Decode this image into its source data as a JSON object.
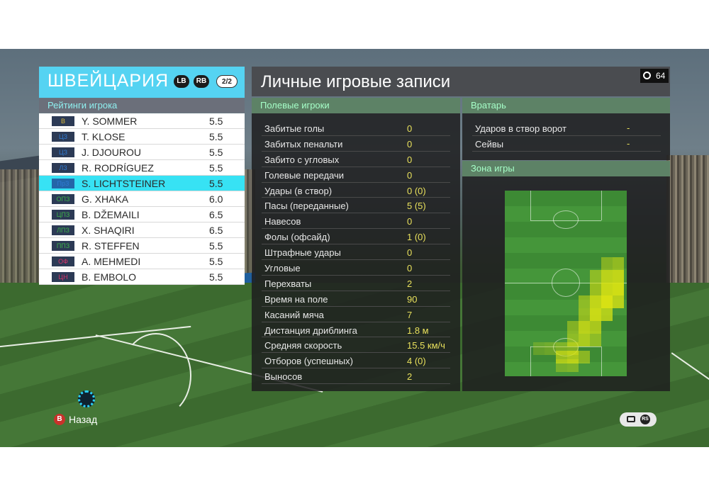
{
  "team": {
    "name": "ШВЕЙЦАРИЯ",
    "lb": "LB",
    "rb": "RB",
    "page": "2/2",
    "ratings_header": "Рейтинги игрока",
    "players": [
      {
        "pos": "В",
        "name": "Y. SOMMER",
        "rating": "5.5",
        "color": "#d9b93a"
      },
      {
        "pos": "ЦЗ",
        "name": "T. KLOSE",
        "rating": "5.5",
        "color": "#2f7bd3"
      },
      {
        "pos": "ЦЗ",
        "name": "J. DJOUROU",
        "rating": "5.5",
        "color": "#2f7bd3"
      },
      {
        "pos": "ЛЗ",
        "name": "R. RODRÍGUEZ",
        "rating": "5.5",
        "color": "#2f7bd3"
      },
      {
        "pos": "ПрЗ",
        "name": "S. LICHTSTEINER",
        "rating": "5.5",
        "color": "#2f7bd3"
      },
      {
        "pos": "ОПЗ",
        "name": "G. XHAKA",
        "rating": "6.0",
        "color": "#3db24a"
      },
      {
        "pos": "ЦПЗ",
        "name": "B. DŽEMAILI",
        "rating": "6.5",
        "color": "#3db24a"
      },
      {
        "pos": "ЛПЗ",
        "name": "X. SHAQIRI",
        "rating": "6.5",
        "color": "#3db24a"
      },
      {
        "pos": "ППЗ",
        "name": "R. STEFFEN",
        "rating": "5.5",
        "color": "#3db24a"
      },
      {
        "pos": "ОФ",
        "name": "A. MEHMEDI",
        "rating": "5.5",
        "color": "#d8336a"
      },
      {
        "pos": "ЦН",
        "name": "B. EMBOLO",
        "rating": "5.5",
        "color": "#d8336a"
      }
    ]
  },
  "main": {
    "title": "Личные игровые записи",
    "timer": "64",
    "field_header": "Полевые игроки",
    "stats": [
      {
        "label": "Забитые голы",
        "value": "0"
      },
      {
        "label": "Забитых пенальти",
        "value": "0"
      },
      {
        "label": "Забито с угловых",
        "value": "0"
      },
      {
        "label": "Голевые передачи",
        "value": "0"
      },
      {
        "label": "Удары (в створ)",
        "value": "0 (0)"
      },
      {
        "label": "Пасы (переданные)",
        "value": "5 (5)"
      },
      {
        "label": "Навесов",
        "value": "0"
      },
      {
        "label": "Фолы (офсайд)",
        "value": "1 (0)"
      },
      {
        "label": "Штрафные удары",
        "value": "0"
      },
      {
        "label": "Угловые",
        "value": "0"
      },
      {
        "label": "Перехваты",
        "value": "2"
      },
      {
        "label": "Время на поле",
        "value": "90"
      },
      {
        "label": "Касаний мяча",
        "value": "7"
      },
      {
        "label": "Дистанция дриблинга",
        "value": "1.8 м"
      },
      {
        "label": "Средняя скорость",
        "value": "15.5 км/ч"
      },
      {
        "label": "Отборов (успешных)",
        "value": "4 (0)"
      },
      {
        "label": "Выносов",
        "value": "2"
      }
    ],
    "gk_header": "Вратарь",
    "gk_stats": [
      {
        "label": "Ударов в створ ворот",
        "value": "-"
      },
      {
        "label": "Сейвы",
        "value": "-"
      }
    ],
    "zone_header": "Зона игры"
  },
  "footer": {
    "b_button": "B",
    "back_label": "Назад",
    "rs_label": "RS"
  }
}
